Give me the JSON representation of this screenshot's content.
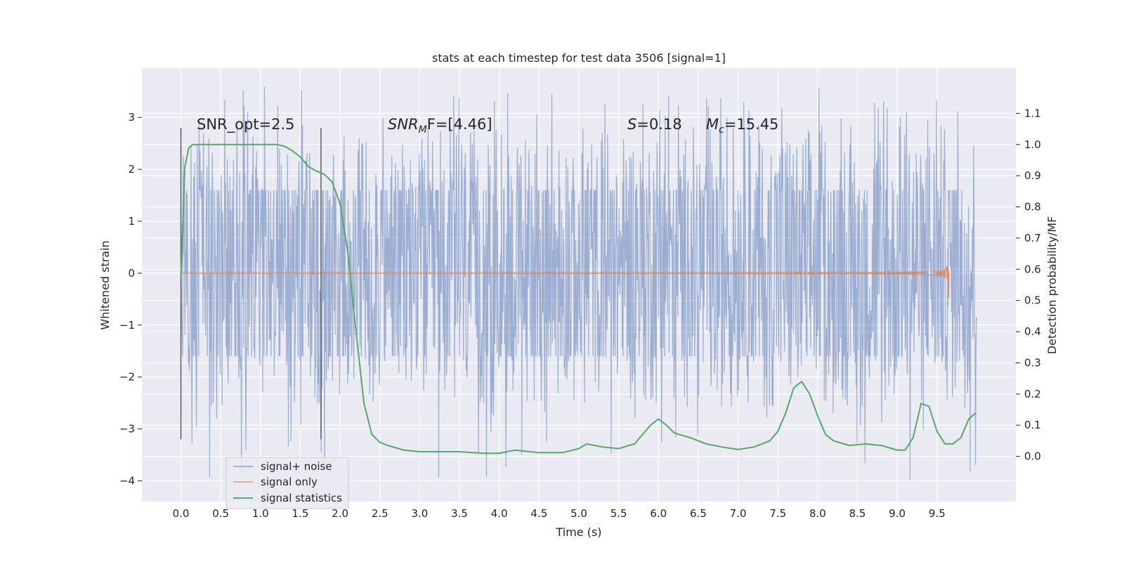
{
  "chart_data": {
    "type": "line",
    "title": "stats at each timestep for test data 3506 [signal=1]",
    "xlabel": "Time (s)",
    "ylabel": "Whitened strain",
    "y2label": "Detection probability/MF",
    "xlim": [
      -0.49,
      10.49
    ],
    "ylim": [
      -4.4,
      3.95
    ],
    "y2lim": [
      -0.145,
      1.245
    ],
    "xticks": [
      "0.0",
      "0.5",
      "1.0",
      "1.5",
      "2.0",
      "2.5",
      "3.0",
      "3.5",
      "4.0",
      "4.5",
      "5.0",
      "5.5",
      "6.0",
      "6.5",
      "7.0",
      "7.5",
      "8.0",
      "8.5",
      "9.0",
      "9.5"
    ],
    "yticks": [
      "3",
      "2",
      "1",
      "0",
      "−1",
      "−2",
      "−3",
      "−4"
    ],
    "y2ticks": [
      "1.1",
      "1.0",
      "0.9",
      "0.8",
      "0.7",
      "0.6",
      "0.5",
      "0.4",
      "0.3",
      "0.2",
      "0.1",
      "0.0"
    ],
    "grid": true,
    "legend_position": "lower-left",
    "annotations": {
      "snr_opt": "SNR_opt=2.5",
      "snr_mf_base": "SNR",
      "snr_mf_sub": "M",
      "snr_mf_rest": "F=[4.46]",
      "s_sym": "S",
      "s_val": "=0.18",
      "mc_sym": "M",
      "mc_sub": "c",
      "mc_val": "=15.45"
    },
    "vertical_markers_s": [
      0.0,
      1.76
    ],
    "vertical_marker_range": [
      -3.2,
      2.8
    ],
    "series": [
      {
        "name": "signal+ noise",
        "color": "#4c72b0",
        "x_range": [
          0.0,
          10.0
        ],
        "envelope": {
          "bulk": [
            -1.0,
            1.0
          ],
          "typical": [
            -2.6,
            2.9
          ],
          "extreme": [
            -4.0,
            3.6
          ]
        }
      },
      {
        "name": "signal only",
        "color": "#dd8452",
        "x_range": [
          0.0,
          9.66
        ],
        "peak_time": 9.65,
        "peak_amplitude": 0.47
      },
      {
        "name": "signal statistics",
        "color": "#55a868",
        "axis": "right",
        "x": [
          0.0,
          0.05,
          0.1,
          0.15,
          0.2,
          0.3,
          0.5,
          0.8,
          1.0,
          1.2,
          1.3,
          1.4,
          1.5,
          1.6,
          1.7,
          1.8,
          1.9,
          2.0,
          2.1,
          2.2,
          2.3,
          2.4,
          2.5,
          2.6,
          2.8,
          3.0,
          3.2,
          3.5,
          3.8,
          4.0,
          4.2,
          4.5,
          4.8,
          5.0,
          5.1,
          5.2,
          5.3,
          5.5,
          5.7,
          5.9,
          6.0,
          6.1,
          6.2,
          6.4,
          6.6,
          6.8,
          7.0,
          7.2,
          7.4,
          7.5,
          7.6,
          7.7,
          7.8,
          7.9,
          8.0,
          8.1,
          8.2,
          8.4,
          8.6,
          8.8,
          9.0,
          9.1,
          9.2,
          9.3,
          9.4,
          9.5,
          9.6,
          9.7,
          9.8,
          9.9,
          9.99
        ],
        "y": [
          0.57,
          0.93,
          0.99,
          1.0,
          1.0,
          1.0,
          1.0,
          1.0,
          1.0,
          1.0,
          0.995,
          0.98,
          0.96,
          0.93,
          0.915,
          0.905,
          0.88,
          0.81,
          0.65,
          0.4,
          0.17,
          0.07,
          0.045,
          0.035,
          0.02,
          0.015,
          0.015,
          0.015,
          0.01,
          0.01,
          0.02,
          0.012,
          0.012,
          0.025,
          0.04,
          0.035,
          0.03,
          0.025,
          0.04,
          0.1,
          0.12,
          0.1,
          0.075,
          0.06,
          0.04,
          0.03,
          0.022,
          0.03,
          0.05,
          0.08,
          0.14,
          0.22,
          0.24,
          0.2,
          0.13,
          0.07,
          0.05,
          0.035,
          0.04,
          0.035,
          0.02,
          0.02,
          0.06,
          0.17,
          0.16,
          0.08,
          0.04,
          0.04,
          0.06,
          0.12,
          0.14
        ]
      }
    ]
  }
}
